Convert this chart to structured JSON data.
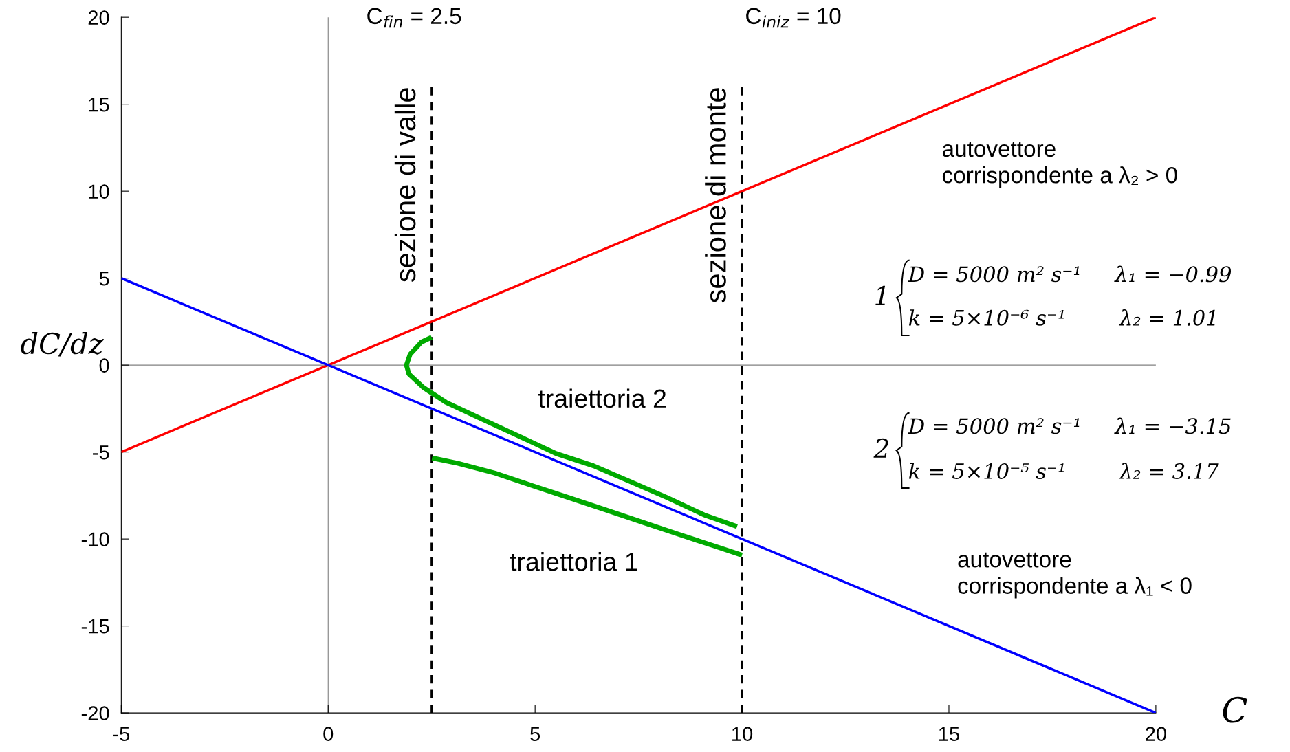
{
  "chart_data": {
    "type": "line",
    "xlabel": "C",
    "ylabel": "dC/dz",
    "xlim": [
      -5,
      20
    ],
    "ylim": [
      -20,
      20
    ],
    "xticks": [
      {
        "value": -5,
        "label": "-5"
      },
      0,
      5,
      10,
      15,
      20
    ],
    "yticks": [
      {
        "value": -20,
        "label": "-20"
      },
      {
        "value": -15,
        "label": "-15"
      },
      {
        "value": -10,
        "label": "-10"
      },
      {
        "value": -5,
        "label": "-5"
      },
      0,
      5,
      10,
      15,
      20
    ],
    "grid": false,
    "marker": "none",
    "line_style": "solid",
    "series": [
      {
        "color": "#ff0000",
        "x": [
          -5,
          20
        ],
        "values": [
          -5,
          20
        ]
      },
      {
        "color": "#0000ff",
        "x": [
          -5,
          20
        ],
        "values": [
          5,
          -20
        ]
      },
      {
        "color": "#00aa00",
        "x": [
          2.5,
          2.25,
          1.98,
          1.89,
          1.95,
          2.3,
          2.84,
          3.73,
          4.62,
          5.51,
          6.41,
          7.3,
          8.19,
          9.08,
          9.88
        ],
        "values": [
          1.6,
          1.32,
          0.62,
          0,
          -0.51,
          -1.29,
          -2.13,
          -3.12,
          -4.1,
          -5.09,
          -5.79,
          -6.7,
          -7.62,
          -8.61,
          -9.28
        ]
      },
      {
        "color": "#00aa00",
        "x": [
          2.51,
          3.14,
          4.03,
          4.92,
          5.81,
          6.7,
          7.59,
          8.48,
          9.38,
          10.0
        ],
        "values": [
          -5.34,
          -5.65,
          -6.21,
          -6.92,
          -7.62,
          -8.32,
          -9.03,
          -9.74,
          -10.44,
          -10.93
        ]
      }
    ],
    "ref_lines": [
      {
        "axis": "x",
        "value": 0,
        "color": "#808080",
        "line_style": "solid"
      },
      {
        "axis": "y",
        "value": 0,
        "color": "#808080",
        "line_style": "solid"
      },
      {
        "axis": "x",
        "value": 2.5,
        "color": "#000000",
        "line_style": "dashed",
        "label": "sezione di valle"
      },
      {
        "axis": "x",
        "value": 10,
        "color": "#000000",
        "line_style": "dashed",
        "label": "sezione di monte"
      }
    ],
    "annotations": [
      "C$_{fin}$ = 2.5",
      "C$_{iniz}$ = 10",
      "traiettoria 2",
      "traiettoria 1",
      "autovettore\ncorrispondente a λ₂ > 0",
      "autovettore\ncorrispondente a λ₁ < 0",
      "1",
      "D = 5000 m² s⁻¹     λ₁ = −0.99",
      "k = 5×10⁻⁶ s⁻¹        λ₂ = 1.01",
      "2",
      "D = 5000 m² s⁻¹     λ₁ = −3.15",
      "k = 5×10⁻⁵ s⁻¹        λ₂ = 3.17"
    ]
  }
}
